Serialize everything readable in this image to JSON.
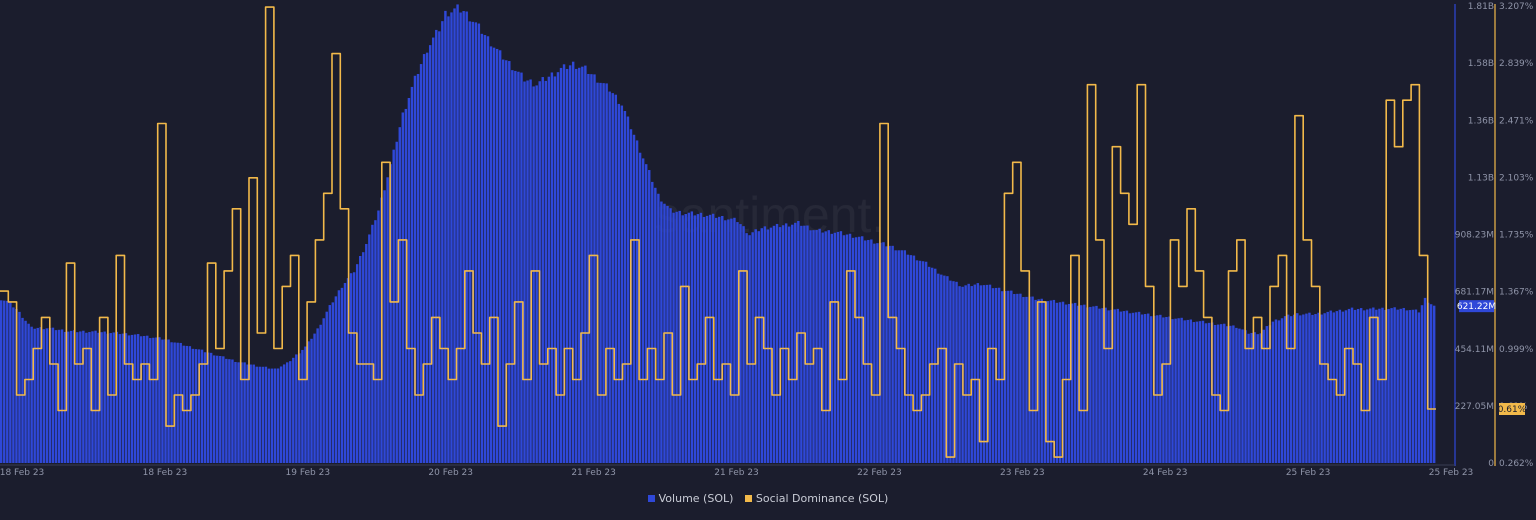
{
  "watermark": "santiment.",
  "chart_data": {
    "type": "area",
    "x_ticks": [
      "18 Feb 23",
      "18 Feb 23",
      "19 Feb 23",
      "20 Feb 23",
      "21 Feb 23",
      "21 Feb 23",
      "22 Feb 23",
      "23 Feb 23",
      "24 Feb 23",
      "25 Feb 23",
      "25 Feb 23"
    ],
    "left_axis": {
      "ticks": [
        "1.81B",
        "1.58B",
        "1.36B",
        "1.13B",
        "908.23M",
        "681.17M",
        "454.11M",
        "227.05M",
        "0"
      ],
      "ylim": [
        0,
        1810000000
      ]
    },
    "right_axis": {
      "ticks": [
        "3.207%",
        "2.839%",
        "2.471%",
        "2.103%",
        "1.735%",
        "1.367%",
        "0.999%",
        "0.61%",
        "0.262%"
      ],
      "ylim": [
        0.262,
        3.207
      ]
    },
    "series": [
      {
        "name": "Volume (SOL)",
        "type": "bar",
        "axis": "left",
        "color": "#2f48d8",
        "last_value_label": "621.22M",
        "points": [
          [
            0,
            650
          ],
          [
            2,
            640
          ],
          [
            5,
            610
          ],
          [
            10,
            535
          ],
          [
            15,
            535
          ],
          [
            22,
            522
          ],
          [
            30,
            520
          ],
          [
            38,
            515
          ],
          [
            46,
            505
          ],
          [
            54,
            490
          ],
          [
            62,
            460
          ],
          [
            70,
            430
          ],
          [
            78,
            400
          ],
          [
            86,
            380
          ],
          [
            90,
            372
          ],
          [
            94,
            395
          ],
          [
            100,
            460
          ],
          [
            104,
            530
          ],
          [
            108,
            620
          ],
          [
            112,
            700
          ],
          [
            116,
            760
          ],
          [
            120,
            870
          ],
          [
            124,
            1000
          ],
          [
            128,
            1180
          ],
          [
            132,
            1380
          ],
          [
            136,
            1520
          ],
          [
            140,
            1640
          ],
          [
            144,
            1720
          ],
          [
            146,
            1780
          ],
          [
            150,
            1800
          ],
          [
            152,
            1790
          ],
          [
            156,
            1740
          ],
          [
            160,
            1680
          ],
          [
            164,
            1620
          ],
          [
            168,
            1570
          ],
          [
            172,
            1520
          ],
          [
            176,
            1500
          ],
          [
            180,
            1530
          ],
          [
            184,
            1560
          ],
          [
            188,
            1580
          ],
          [
            192,
            1560
          ],
          [
            196,
            1520
          ],
          [
            200,
            1480
          ],
          [
            204,
            1420
          ],
          [
            208,
            1300
          ],
          [
            212,
            1180
          ],
          [
            216,
            1060
          ],
          [
            220,
            1000
          ],
          [
            224,
            990
          ],
          [
            230,
            985
          ],
          [
            236,
            975
          ],
          [
            242,
            960
          ],
          [
            246,
            905
          ],
          [
            250,
            930
          ],
          [
            256,
            940
          ],
          [
            262,
            950
          ],
          [
            268,
            920
          ],
          [
            274,
            915
          ],
          [
            280,
            900
          ],
          [
            286,
            880
          ],
          [
            292,
            860
          ],
          [
            298,
            830
          ],
          [
            304,
            790
          ],
          [
            310,
            740
          ],
          [
            316,
            700
          ],
          [
            322,
            710
          ],
          [
            328,
            690
          ],
          [
            334,
            670
          ],
          [
            340,
            650
          ],
          [
            346,
            640
          ],
          [
            352,
            630
          ],
          [
            358,
            620
          ],
          [
            364,
            610
          ],
          [
            370,
            600
          ],
          [
            376,
            590
          ],
          [
            382,
            580
          ],
          [
            388,
            570
          ],
          [
            394,
            560
          ],
          [
            400,
            550
          ],
          [
            406,
            540
          ],
          [
            410,
            515
          ],
          [
            414,
            515
          ],
          [
            418,
            560
          ],
          [
            422,
            580
          ],
          [
            426,
            590
          ],
          [
            432,
            590
          ],
          [
            438,
            600
          ],
          [
            444,
            610
          ],
          [
            450,
            610
          ],
          [
            456,
            612
          ],
          [
            462,
            610
          ],
          [
            466,
            600
          ],
          [
            468,
            650
          ],
          [
            471,
            621.22
          ]
        ],
        "count": 472
      },
      {
        "name": "Social Dominance (SOL)",
        "type": "line",
        "axis": "right",
        "color": "#f2b94a",
        "last_value_label": "0.61%",
        "values": [
          1.37,
          1.3,
          0.7,
          0.8,
          1.0,
          1.2,
          0.9,
          0.6,
          1.55,
          0.9,
          1.0,
          0.6,
          1.2,
          0.7,
          1.6,
          0.9,
          0.8,
          0.9,
          0.8,
          2.45,
          0.5,
          0.7,
          0.6,
          0.7,
          0.9,
          1.55,
          1.0,
          1.5,
          1.9,
          0.8,
          2.1,
          1.1,
          3.2,
          1.0,
          1.4,
          1.6,
          0.8,
          1.3,
          1.7,
          2.0,
          2.9,
          1.9,
          1.1,
          0.9,
          0.9,
          0.8,
          2.2,
          1.3,
          1.7,
          1.0,
          0.7,
          0.9,
          1.2,
          1.0,
          0.8,
          1.0,
          1.5,
          1.1,
          0.9,
          1.2,
          0.5,
          0.9,
          1.3,
          0.8,
          1.5,
          0.9,
          1.0,
          0.7,
          1.0,
          0.8,
          1.1,
          1.6,
          0.7,
          1.0,
          0.8,
          0.9,
          1.7,
          0.8,
          1.0,
          0.8,
          1.1,
          0.7,
          1.4,
          0.8,
          0.9,
          1.2,
          0.8,
          0.9,
          0.7,
          1.5,
          0.9,
          1.2,
          1.0,
          0.7,
          1.0,
          0.8,
          1.1,
          0.9,
          1.0,
          0.6,
          1.3,
          0.8,
          1.5,
          1.2,
          0.9,
          0.7,
          2.45,
          1.2,
          1.0,
          0.7,
          0.6,
          0.7,
          0.9,
          1.0,
          0.3,
          0.9,
          0.7,
          0.8,
          0.4,
          1.0,
          0.8,
          2.0,
          2.2,
          1.5,
          0.6,
          1.3,
          0.4,
          0.3,
          0.8,
          1.6,
          0.6,
          2.7,
          1.7,
          1.0,
          2.3,
          2.0,
          1.8,
          2.7,
          1.4,
          0.7,
          0.9,
          1.7,
          1.4,
          1.9,
          1.5,
          1.2,
          0.7,
          0.6,
          1.5,
          1.7,
          1.0,
          1.2,
          1.0,
          1.4,
          1.6,
          1.0,
          2.5,
          1.7,
          1.4,
          0.9,
          0.8,
          0.7,
          1.0,
          0.9,
          0.6,
          1.2,
          0.8,
          2.6,
          2.3,
          2.6,
          2.7,
          1.6,
          0.61
        ]
      }
    ],
    "legend_position": "bottom-center",
    "grid": false
  }
}
